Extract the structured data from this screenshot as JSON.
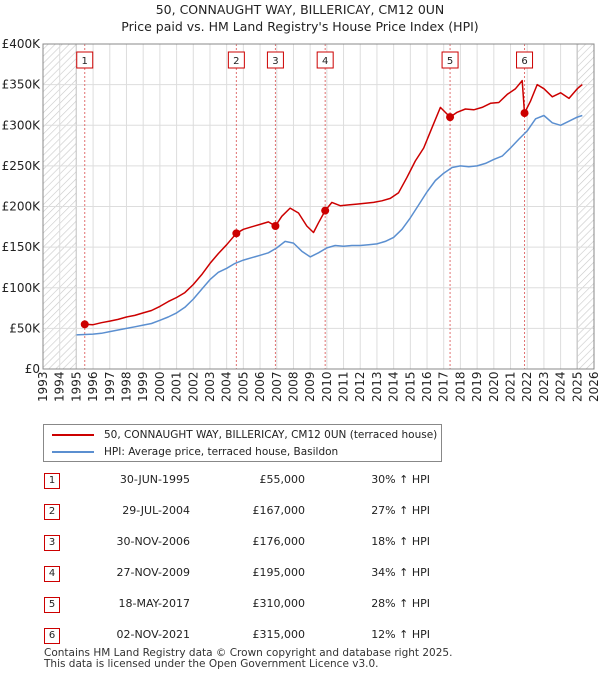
{
  "title_line1": "50, CONNAUGHT WAY, BILLERICAY, CM12 0UN",
  "title_line2": "Price paid vs. HM Land Registry's House Price Index (HPI)",
  "chart_data": {
    "type": "line",
    "title": "50, CONNAUGHT WAY, BILLERICAY, CM12 0UN — Price paid vs. HM Land Registry's House Price Index (HPI)",
    "xlabel": "",
    "ylabel": "",
    "xlim": [
      1993,
      2026
    ],
    "ylim": [
      0,
      400000
    ],
    "x_ticks": [
      "1993",
      "1994",
      "1995",
      "1996",
      "1997",
      "1998",
      "1999",
      "2000",
      "2001",
      "2002",
      "2003",
      "2004",
      "2005",
      "2006",
      "2007",
      "2008",
      "2009",
      "2010",
      "2011",
      "2012",
      "2013",
      "2014",
      "2015",
      "2016",
      "2017",
      "2018",
      "2019",
      "2020",
      "2021",
      "2022",
      "2023",
      "2024",
      "2025",
      "2026"
    ],
    "y_ticks": [
      {
        "value": 0,
        "label": "£0"
      },
      {
        "value": 50000,
        "label": "£50K"
      },
      {
        "value": 100000,
        "label": "£100K"
      },
      {
        "value": 150000,
        "label": "£150K"
      },
      {
        "value": 200000,
        "label": "£200K"
      },
      {
        "value": 250000,
        "label": "£250K"
      },
      {
        "value": 300000,
        "label": "£300K"
      },
      {
        "value": 350000,
        "label": "£350K"
      },
      {
        "value": 400000,
        "label": "£400K"
      }
    ],
    "hatched_ranges": [
      [
        1993,
        1995.0
      ],
      [
        2025.0,
        2026
      ]
    ],
    "series": [
      {
        "name": "50, CONNAUGHT WAY, BILLERICAY, CM12 0UN (terraced house)",
        "color": "#cc0000",
        "x": [
          1995.5,
          1996.0,
          1996.5,
          1997.0,
          1997.5,
          1998.0,
          1998.5,
          1999.0,
          1999.5,
          2000.0,
          2000.5,
          2001.0,
          2001.5,
          2002.0,
          2002.5,
          2003.0,
          2003.5,
          2004.0,
          2004.58,
          2005.0,
          2005.5,
          2006.0,
          2006.5,
          2006.92,
          2007.3,
          2007.8,
          2008.3,
          2008.8,
          2009.2,
          2009.5,
          2009.9,
          2010.3,
          2010.8,
          2011.3,
          2011.8,
          2012.3,
          2012.8,
          2013.3,
          2013.8,
          2014.3,
          2014.8,
          2015.3,
          2015.8,
          2016.3,
          2016.8,
          2017.38,
          2017.8,
          2018.3,
          2018.8,
          2019.3,
          2019.8,
          2020.3,
          2020.8,
          2021.3,
          2021.7,
          2021.84,
          2022.2,
          2022.6,
          2023.0,
          2023.5,
          2024.0,
          2024.5,
          2025.0,
          2025.3
        ],
        "values": [
          55000,
          54500,
          57000,
          59000,
          61000,
          64000,
          66000,
          69000,
          72000,
          77000,
          83000,
          88000,
          94000,
          104000,
          116000,
          130000,
          142000,
          153000,
          167000,
          172000,
          175000,
          178000,
          181000,
          176000,
          188000,
          198000,
          192000,
          176000,
          168000,
          180000,
          195000,
          205000,
          201000,
          202000,
          203000,
          204000,
          205000,
          207000,
          210000,
          217000,
          236000,
          256000,
          272000,
          297000,
          322000,
          310000,
          316000,
          320000,
          319000,
          322000,
          327000,
          328000,
          338000,
          345000,
          355000,
          315000,
          330000,
          350000,
          345000,
          335000,
          340000,
          333000,
          345000,
          350000
        ]
      },
      {
        "name": "HPI: Average price, terraced house, Basildon",
        "color": "#5b8fd0",
        "x": [
          1995.0,
          1995.5,
          1996.0,
          1996.5,
          1997.0,
          1997.5,
          1998.0,
          1998.5,
          1999.0,
          1999.5,
          2000.0,
          2000.5,
          2001.0,
          2001.5,
          2002.0,
          2002.5,
          2003.0,
          2003.5,
          2004.0,
          2004.5,
          2005.0,
          2005.5,
          2006.0,
          2006.5,
          2007.0,
          2007.5,
          2008.0,
          2008.5,
          2009.0,
          2009.5,
          2010.0,
          2010.5,
          2011.0,
          2011.5,
          2012.0,
          2012.5,
          2013.0,
          2013.5,
          2014.0,
          2014.5,
          2015.0,
          2015.5,
          2016.0,
          2016.5,
          2017.0,
          2017.5,
          2018.0,
          2018.5,
          2019.0,
          2019.5,
          2020.0,
          2020.5,
          2021.0,
          2021.5,
          2022.0,
          2022.5,
          2023.0,
          2023.5,
          2024.0,
          2024.5,
          2025.0,
          2025.3
        ],
        "values": [
          42000,
          42500,
          43000,
          44000,
          46000,
          48000,
          50000,
          52000,
          54000,
          56000,
          60000,
          64000,
          69000,
          76000,
          86000,
          98000,
          110000,
          119000,
          124000,
          130000,
          134000,
          137000,
          140000,
          143000,
          149000,
          157000,
          155000,
          145000,
          138000,
          143000,
          149000,
          152000,
          151000,
          152000,
          152000,
          153000,
          154000,
          157000,
          162000,
          172000,
          186000,
          202000,
          218000,
          232000,
          241000,
          248000,
          250000,
          249000,
          250000,
          253000,
          258000,
          262000,
          272000,
          283000,
          293000,
          308000,
          312000,
          303000,
          300000,
          305000,
          310000,
          312000
        ]
      }
    ],
    "markers": [
      {
        "n": "1",
        "x": 1995.5,
        "y": 55000
      },
      {
        "n": "2",
        "x": 2004.58,
        "y": 167000
      },
      {
        "n": "3",
        "x": 2006.92,
        "y": 176000
      },
      {
        "n": "4",
        "x": 2009.9,
        "y": 195000
      },
      {
        "n": "5",
        "x": 2017.38,
        "y": 310000
      },
      {
        "n": "6",
        "x": 2021.84,
        "y": 315000
      }
    ],
    "legend": {
      "placement": "below",
      "entries": [
        "50, CONNAUGHT WAY, BILLERICAY, CM12 0UN (terraced house)",
        "HPI: Average price, terraced house, Basildon"
      ]
    }
  },
  "sales": [
    {
      "num": "1",
      "date": "30-JUN-1995",
      "price": "£55,000",
      "hpi": "30% ↑ HPI"
    },
    {
      "num": "2",
      "date": "29-JUL-2004",
      "price": "£167,000",
      "hpi": "27% ↑ HPI"
    },
    {
      "num": "3",
      "date": "30-NOV-2006",
      "price": "£176,000",
      "hpi": "18% ↑ HPI"
    },
    {
      "num": "4",
      "date": "27-NOV-2009",
      "price": "£195,000",
      "hpi": "34% ↑ HPI"
    },
    {
      "num": "5",
      "date": "18-MAY-2017",
      "price": "£310,000",
      "hpi": "28% ↑ HPI"
    },
    {
      "num": "6",
      "date": "02-NOV-2021",
      "price": "£315,000",
      "hpi": "12% ↑ HPI"
    }
  ],
  "footer_line1": "Contains HM Land Registry data © Crown copyright and database right 2025.",
  "footer_line2": "This data is licensed under the Open Government Licence v3.0."
}
